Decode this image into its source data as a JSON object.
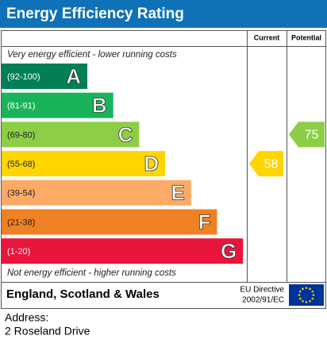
{
  "title": "Energy Efficiency Rating",
  "columns": {
    "current": "Current",
    "potential": "Potential"
  },
  "top_note": "Very energy efficient - lower running costs",
  "bottom_note": "Not energy efficient - higher running costs",
  "bands": [
    {
      "range": "(92-100)",
      "letter": "A",
      "color": "#008054"
    },
    {
      "range": "(81-91)",
      "letter": "B",
      "color": "#19b459"
    },
    {
      "range": "(69-80)",
      "letter": "C",
      "color": "#8dce46"
    },
    {
      "range": "(55-68)",
      "letter": "D",
      "color": "#ffd500"
    },
    {
      "range": "(39-54)",
      "letter": "E",
      "color": "#fcaa65"
    },
    {
      "range": "(21-38)",
      "letter": "F",
      "color": "#ef8023"
    },
    {
      "range": "(1-20)",
      "letter": "G",
      "color": "#e9153b"
    }
  ],
  "current": 58,
  "potential": 75,
  "footer": {
    "region": "England, Scotland & Wales",
    "directive_line1": "EU Directive",
    "directive_line2": "2002/91/EC"
  },
  "address": {
    "label": "Address:",
    "line": "2 Roseland Drive"
  }
}
